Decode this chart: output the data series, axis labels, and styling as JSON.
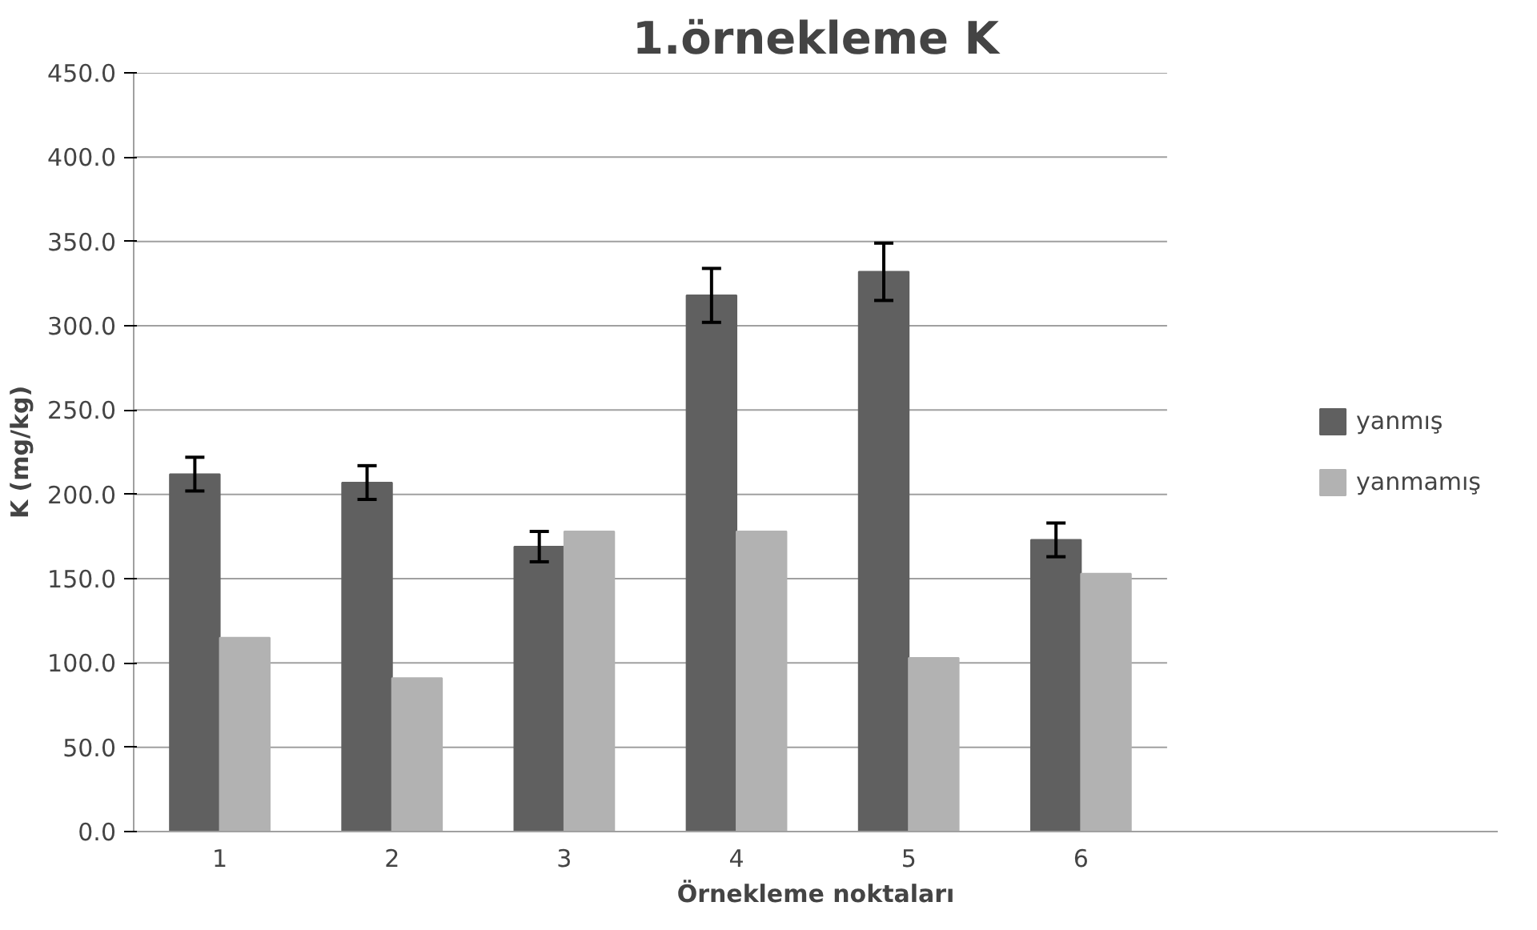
{
  "chart_data": {
    "type": "bar",
    "title": "1.örnekleme K",
    "xlabel": "Örnekleme noktaları",
    "ylabel": "K (mg/kg)",
    "categories": [
      "1",
      "2",
      "3",
      "4",
      "5",
      "6"
    ],
    "series": [
      {
        "name": "yanmış",
        "color": "#606060",
        "values": [
          212,
          207,
          169,
          318,
          332,
          173
        ],
        "errors": [
          10,
          10,
          9,
          16,
          17,
          10
        ]
      },
      {
        "name": "yanmamış",
        "color": "#b2b2b2",
        "values": [
          115,
          91,
          178,
          178,
          103,
          153
        ]
      }
    ],
    "ylim": [
      0,
      450
    ],
    "yticks": [
      {
        "value": 0,
        "label": "0.0"
      },
      {
        "value": 50,
        "label": "50.0"
      },
      {
        "value": 100,
        "label": "100.0"
      },
      {
        "value": 150,
        "label": "150.0"
      },
      {
        "value": 200,
        "label": "200.0"
      },
      {
        "value": 250,
        "label": "250.0"
      },
      {
        "value": 300,
        "label": "300.0"
      },
      {
        "value": 350,
        "label": "350.0"
      },
      {
        "value": 400,
        "label": "400.0"
      },
      {
        "value": 450,
        "label": "450.0"
      }
    ],
    "grid": "y",
    "legend": "right"
  }
}
